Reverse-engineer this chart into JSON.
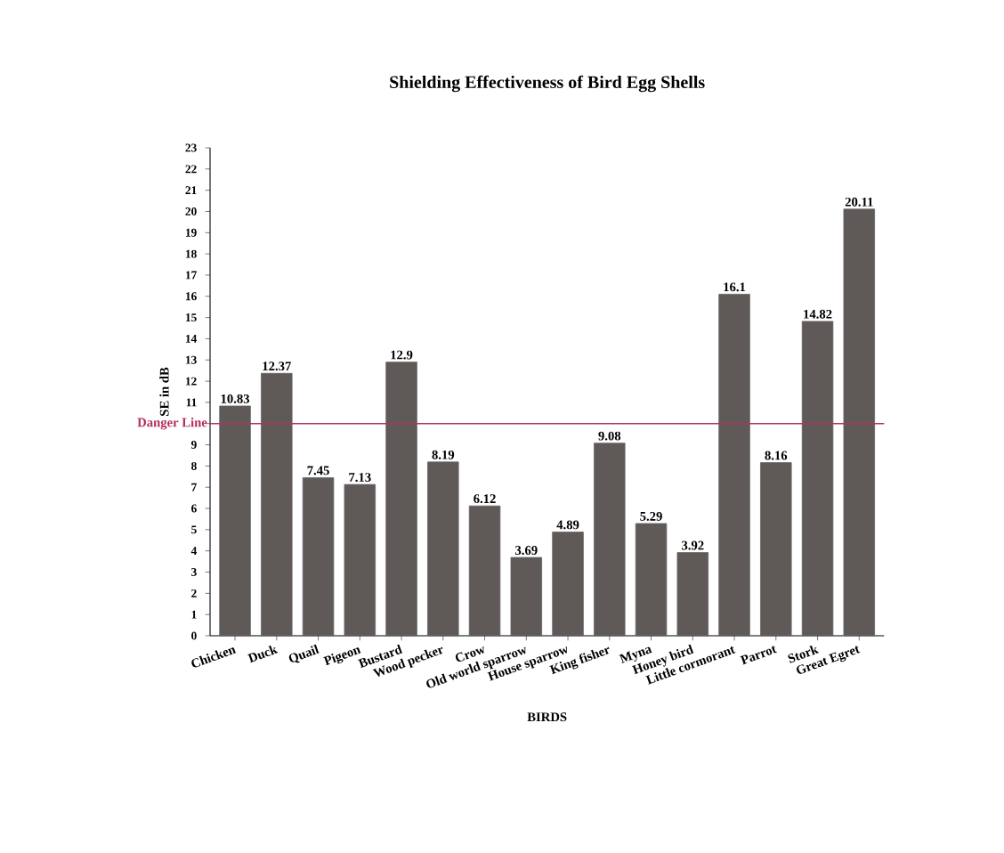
{
  "chart_data": {
    "type": "bar",
    "title": "Shielding Effectiveness of Bird Egg Shells",
    "xlabel": "BIRDS",
    "ylabel": "SE in dB",
    "categories": [
      "Chicken",
      "Duck",
      "Quail",
      "Pigeon",
      "Bustard",
      "Wood pecker",
      "Crow",
      "Old world sparrow",
      "House sparrow",
      "King fisher",
      "Myna",
      "Honey bird",
      "Little cormorant",
      "Parrot",
      "Stork",
      "Great Egret"
    ],
    "values": [
      10.83,
      12.37,
      7.45,
      7.13,
      12.9,
      8.19,
      6.12,
      3.69,
      4.89,
      9.08,
      5.29,
      3.92,
      16.1,
      8.16,
      14.82,
      20.11
    ],
    "color": "#5f5a58",
    "data_labels": true,
    "ylim": [
      0,
      23
    ],
    "yticks": [
      0,
      1,
      2,
      3,
      4,
      5,
      6,
      7,
      8,
      9,
      {
        "value": 10,
        "label": null
      },
      11,
      12,
      13,
      14,
      15,
      16,
      17,
      18,
      19,
      20,
      21,
      22,
      23
    ],
    "ref_lines": [
      {
        "axis": "y",
        "value": 10,
        "label": "Danger Line",
        "color": "#b5305a"
      }
    ]
  }
}
